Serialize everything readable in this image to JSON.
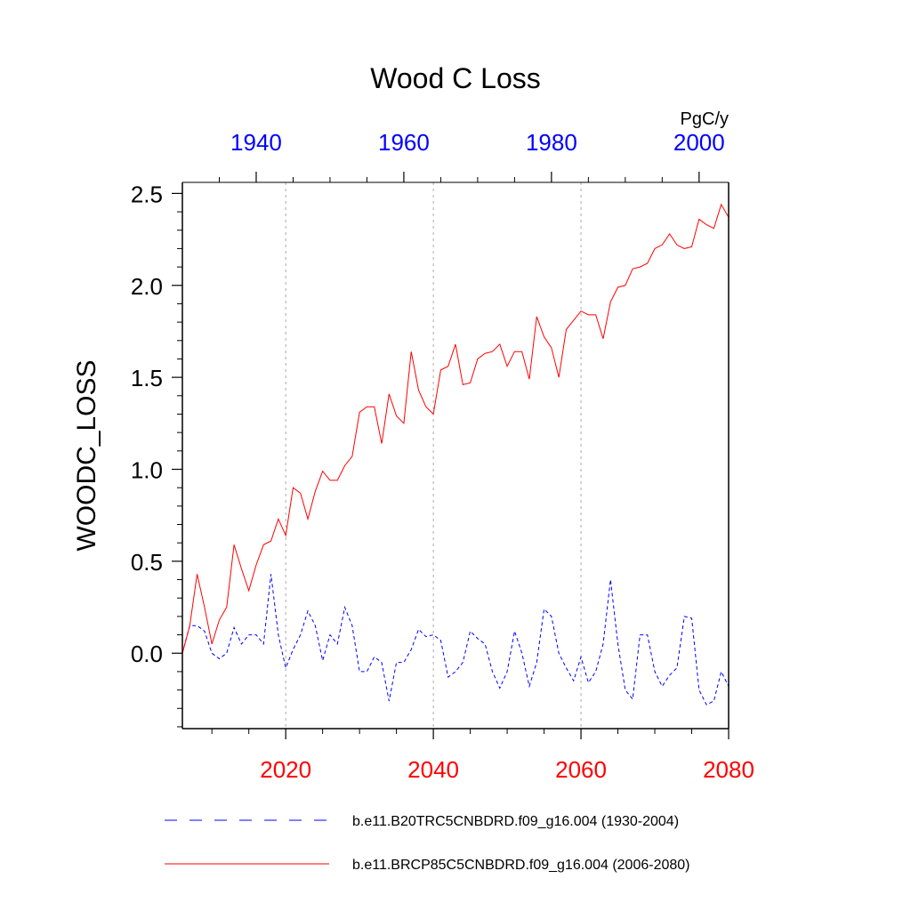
{
  "chart_data": {
    "type": "line",
    "title": "Wood C Loss",
    "ylabel": "WOODC_LOSS",
    "units": "PgC/y",
    "ylim": [
      -0.41,
      2.56
    ],
    "yticks": [
      0.0,
      0.5,
      1.0,
      1.5,
      2.0,
      2.5
    ],
    "ytick_labels": [
      "0.0",
      "0.5",
      "1.0",
      "1.5",
      "2.0",
      "2.5"
    ],
    "bottom_axis": {
      "xlim": [
        2006,
        2080
      ],
      "ticks": [
        2020,
        2040,
        2060,
        2080
      ],
      "tick_labels": [
        "2020",
        "2040",
        "2060",
        "2080"
      ],
      "color": "#ff0000"
    },
    "top_axis": {
      "xlim": [
        1930,
        2004
      ],
      "ticks": [
        1940,
        1960,
        1980,
        2000
      ],
      "tick_labels": [
        "1940",
        "1960",
        "1980",
        "2000"
      ],
      "color": "#0000ff"
    },
    "grid": "vertical dashed at major bottom ticks",
    "legend_position": "bottom",
    "series": [
      {
        "name": "b.e11.B20TRC5CNBDRD.f09_g16.004 (1930-2004)",
        "color": "#0000ff",
        "style": "dashed",
        "axis": "top",
        "x": [
          1930,
          1931,
          1932,
          1933,
          1934,
          1935,
          1936,
          1937,
          1938,
          1939,
          1940,
          1941,
          1942,
          1943,
          1944,
          1945,
          1946,
          1947,
          1948,
          1949,
          1950,
          1951,
          1952,
          1953,
          1954,
          1955,
          1956,
          1957,
          1958,
          1959,
          1960,
          1961,
          1962,
          1963,
          1964,
          1965,
          1966,
          1967,
          1968,
          1969,
          1970,
          1971,
          1972,
          1973,
          1974,
          1975,
          1976,
          1977,
          1978,
          1979,
          1980,
          1981,
          1982,
          1983,
          1984,
          1985,
          1986,
          1987,
          1988,
          1989,
          1990,
          1991,
          1992,
          1993,
          1994,
          1995,
          1996,
          1997,
          1998,
          1999,
          2000,
          2001,
          2002,
          2003,
          2004
        ],
        "values": [
          0.0,
          0.15,
          0.15,
          0.12,
          0.0,
          -0.03,
          0.0,
          0.14,
          0.05,
          0.1,
          0.1,
          0.05,
          0.43,
          0.1,
          -0.08,
          0.02,
          0.1,
          0.23,
          0.15,
          -0.04,
          0.1,
          0.05,
          0.25,
          0.15,
          -0.1,
          -0.1,
          -0.02,
          -0.05,
          -0.26,
          -0.05,
          -0.05,
          0.02,
          0.13,
          0.09,
          0.1,
          0.07,
          -0.13,
          -0.1,
          -0.05,
          0.12,
          0.08,
          0.05,
          -0.1,
          -0.19,
          -0.1,
          0.12,
          0.0,
          -0.18,
          -0.05,
          0.24,
          0.2,
          0.0,
          -0.08,
          -0.15,
          -0.02,
          -0.16,
          -0.1,
          0.05,
          0.4,
          0.05,
          -0.2,
          -0.25,
          0.1,
          0.1,
          -0.1,
          -0.18,
          -0.12,
          -0.08,
          0.2,
          0.19,
          -0.2,
          -0.28,
          -0.26,
          -0.1,
          -0.18
        ]
      },
      {
        "name": "b.e11.BRCP85C5CNBDRD.f09_g16.004 (2006-2080)",
        "color": "#ff0000",
        "style": "solid",
        "axis": "bottom",
        "x": [
          2006,
          2007,
          2008,
          2009,
          2010,
          2011,
          2012,
          2013,
          2014,
          2015,
          2016,
          2017,
          2018,
          2019,
          2020,
          2021,
          2022,
          2023,
          2024,
          2025,
          2026,
          2027,
          2028,
          2029,
          2030,
          2031,
          2032,
          2033,
          2034,
          2035,
          2036,
          2037,
          2038,
          2039,
          2040,
          2041,
          2042,
          2043,
          2044,
          2045,
          2046,
          2047,
          2048,
          2049,
          2050,
          2051,
          2052,
          2053,
          2054,
          2055,
          2056,
          2057,
          2058,
          2059,
          2060,
          2061,
          2062,
          2063,
          2064,
          2065,
          2066,
          2067,
          2068,
          2069,
          2070,
          2071,
          2072,
          2073,
          2074,
          2075,
          2076,
          2077,
          2078,
          2079,
          2080
        ],
        "values": [
          0.0,
          0.15,
          0.43,
          0.25,
          0.05,
          0.18,
          0.25,
          0.59,
          0.46,
          0.34,
          0.48,
          0.59,
          0.61,
          0.73,
          0.64,
          0.9,
          0.87,
          0.73,
          0.88,
          0.99,
          0.94,
          0.94,
          1.02,
          1.07,
          1.31,
          1.34,
          1.34,
          1.14,
          1.41,
          1.29,
          1.25,
          1.64,
          1.43,
          1.34,
          1.3,
          1.54,
          1.56,
          1.68,
          1.46,
          1.47,
          1.6,
          1.63,
          1.64,
          1.68,
          1.56,
          1.64,
          1.64,
          1.49,
          1.83,
          1.72,
          1.66,
          1.5,
          1.76,
          1.81,
          1.86,
          1.84,
          1.84,
          1.71,
          1.91,
          1.99,
          2.0,
          2.09,
          2.1,
          2.12,
          2.2,
          2.22,
          2.28,
          2.22,
          2.2,
          2.21,
          2.36,
          2.33,
          2.31,
          2.44,
          2.37
        ]
      }
    ]
  }
}
